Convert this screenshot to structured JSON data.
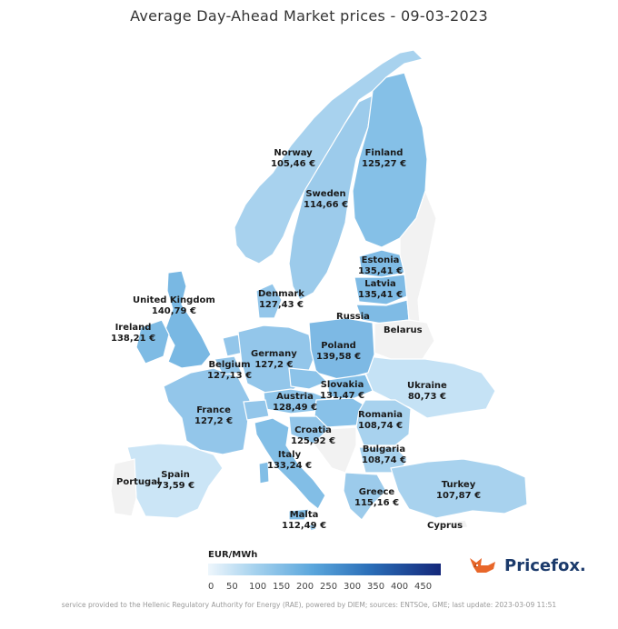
{
  "title": "Average Day-Ahead Market prices - 09-03-2023",
  "legend": {
    "unit": "EUR/MWh",
    "ticks": [
      "0",
      "50",
      "100",
      "150",
      "200",
      "250",
      "300",
      "350",
      "400",
      "450"
    ],
    "range": [
      0,
      500
    ],
    "colors": {
      "low": "#eef6fc",
      "mid": "#5aa6dc",
      "high": "#14287a",
      "no_data": "#f2f2f2"
    }
  },
  "countries": [
    {
      "name": "Norway",
      "price": "105,46 €"
    },
    {
      "name": "Finland",
      "price": "125,27 €"
    },
    {
      "name": "Sweden",
      "price": "114,66 €"
    },
    {
      "name": "Estonia",
      "price": "135,41 €"
    },
    {
      "name": "Latvia",
      "price": "135,41 €"
    },
    {
      "name": "United Kingdom",
      "price": "140,79 €"
    },
    {
      "name": "Denmark",
      "price": "127,43 €"
    },
    {
      "name": "Russia",
      "price": ""
    },
    {
      "name": "Ireland",
      "price": "138,21 €"
    },
    {
      "name": "Belarus",
      "price": ""
    },
    {
      "name": "Germany",
      "price": "127,2 €"
    },
    {
      "name": "Poland",
      "price": "139,58 €"
    },
    {
      "name": "Belgium",
      "price": "127,13 €"
    },
    {
      "name": "Ukraine",
      "price": "80,73 €"
    },
    {
      "name": "Slovakia",
      "price": "131,47 €"
    },
    {
      "name": "Austria",
      "price": "128,49 €"
    },
    {
      "name": "France",
      "price": "127,2 €"
    },
    {
      "name": "Romania",
      "price": "108,74 €"
    },
    {
      "name": "Croatia",
      "price": "125,92 €"
    },
    {
      "name": "Bulgaria",
      "price": "108,74 €"
    },
    {
      "name": "Italy",
      "price": "133,24 €"
    },
    {
      "name": "Spain",
      "price": "73,59 €"
    },
    {
      "name": "Portugal",
      "price": ""
    },
    {
      "name": "Turkey",
      "price": "107,87 €"
    },
    {
      "name": "Greece",
      "price": "115,16 €"
    },
    {
      "name": "Malta",
      "price": "112,49 €"
    },
    {
      "name": "Cyprus",
      "price": ""
    }
  ],
  "logo": {
    "text": "Pricefox.",
    "icon": "fox-icon"
  },
  "footer": "service provided to the Hellenic Regulatory Authority for Energy (RAE), powered by DIEM; sources: ENTSOe, GME; last update: 2023-03-09 11:51"
}
